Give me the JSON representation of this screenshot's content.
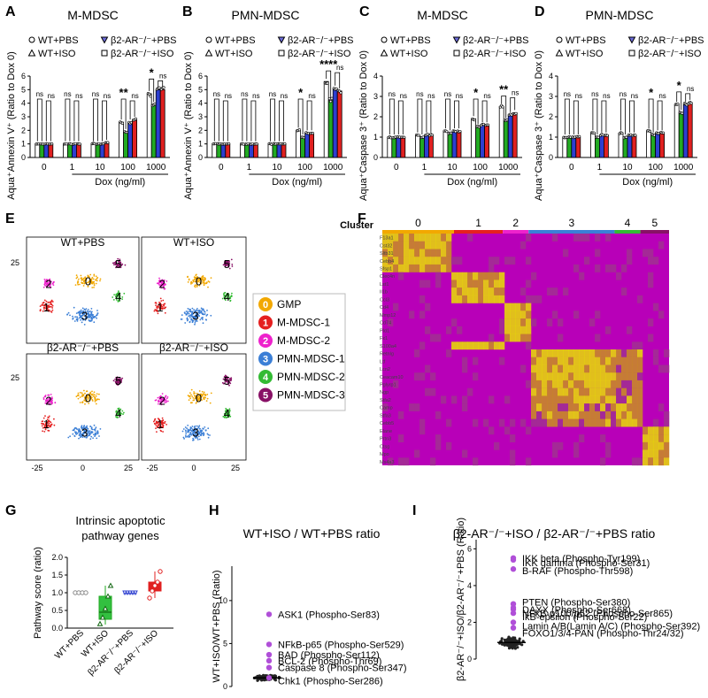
{
  "colors": {
    "wt_pbs": "#ffffff",
    "wt_iso": "#22aa22",
    "ko_pbs": "#2d3fd0",
    "ko_iso": "#e02020",
    "gmp": "#f2a800",
    "mm1": "#e52020",
    "mm2": "#ee22cc",
    "pmn1": "#3b7fd6",
    "pmn2": "#33bb33",
    "pmn3": "#881166",
    "lollipop": "#b04fd8"
  },
  "panel_letters": [
    "A",
    "B",
    "C",
    "D",
    "E",
    "F",
    "G",
    "H",
    "I"
  ],
  "legend_abcd": {
    "wt_pbs": "WT+PBS",
    "ko_pbs": "β2-AR⁻/⁻+PBS",
    "wt_iso": "WT+ISO",
    "ko_iso": "β2-AR⁻/⁻+ISO"
  },
  "ns": "ns",
  "tsne": {
    "panels": [
      "WT+PBS",
      "WT+ISO",
      "β2-AR⁻/⁻+PBS",
      "β2-AR⁻/⁻+ISO"
    ],
    "ticks": [
      "-25",
      "0",
      "25"
    ],
    "ytick": "25",
    "legend": [
      {
        "num": "0",
        "label": "GMP"
      },
      {
        "num": "1",
        "label": "M-MDSC-1"
      },
      {
        "num": "2",
        "label": "M-MDSC-2"
      },
      {
        "num": "3",
        "label": "PMN-MDSC-1"
      },
      {
        "num": "4",
        "label": "PMN-MDSC-2"
      },
      {
        "num": "5",
        "label": "PMN-MDSC-3"
      }
    ]
  },
  "heatmap": {
    "cluster_label": "Cluster",
    "clusters": [
      "0",
      "1",
      "2",
      "3",
      "4",
      "5"
    ],
    "genes": [
      "F13a1",
      "Cst32",
      "Sltb31",
      "Cebb4",
      "Sfsp1",
      "Clec4n",
      "Lst1",
      "Il1b",
      "Ccl3",
      "Cd4",
      "Mmp12",
      "Cd74",
      "Pld1",
      "Fx1",
      "S100a4",
      "Retnlg",
      "Ltf",
      "Lcn2",
      "Ceacam10",
      "Pglyrp1",
      "Ngp",
      "Stfa2",
      "Camp",
      "Stfa3",
      "Cebb5",
      "Elane",
      "Prtn3",
      "Ctsg",
      "Mpo",
      "Ms4a3"
    ]
  },
  "chart_data": [
    {
      "panel": "A",
      "type": "bar",
      "title": "M-MDSC",
      "ylabel": "Aqua⁺Annexin V⁺ (Ratio to Dox 0)",
      "xlabel": "Dox (ng/ml)",
      "categories": [
        "0",
        "1",
        "10",
        "100",
        "1000"
      ],
      "ylim": [
        0,
        6
      ],
      "yticks": [
        "0",
        "1",
        "2",
        "3",
        "4",
        "5",
        "6"
      ],
      "series": [
        {
          "name": "WT+PBS",
          "values": [
            1.0,
            1.0,
            1.0,
            2.6,
            4.7
          ]
        },
        {
          "name": "WT+ISO",
          "values": [
            1.0,
            1.0,
            1.0,
            1.9,
            3.9
          ]
        },
        {
          "name": "β2-AR⁻/⁻+PBS",
          "values": [
            1.0,
            1.0,
            1.0,
            2.6,
            5.0
          ]
        },
        {
          "name": "β2-AR⁻/⁻+ISO",
          "values": [
            1.0,
            1.0,
            1.1,
            2.8,
            5.0
          ]
        }
      ],
      "sig": [
        "ns",
        "ns",
        "ns",
        "**",
        "*"
      ],
      "sig2": [
        "ns",
        "ns",
        "ns",
        "ns",
        "ns"
      ]
    },
    {
      "panel": "B",
      "type": "bar",
      "title": "PMN-MDSC",
      "ylabel": "Aqua⁺Annexin V⁺ (Ratio to Dox 0)",
      "xlabel": "Dox (ng/ml)",
      "categories": [
        "0",
        "1",
        "10",
        "100",
        "1000"
      ],
      "ylim": [
        0,
        6
      ],
      "yticks": [
        "0",
        "1",
        "2",
        "3",
        "4",
        "5",
        "6"
      ],
      "series": [
        {
          "name": "WT+PBS",
          "values": [
            1.0,
            1.0,
            1.0,
            2.0,
            5.6
          ]
        },
        {
          "name": "WT+ISO",
          "values": [
            1.0,
            1.0,
            1.0,
            1.5,
            4.2
          ]
        },
        {
          "name": "β2-AR⁻/⁻+PBS",
          "values": [
            1.0,
            1.0,
            1.0,
            1.8,
            5.1
          ]
        },
        {
          "name": "β2-AR⁻/⁻+ISO",
          "values": [
            1.0,
            1.0,
            1.0,
            1.8,
            4.9
          ]
        }
      ],
      "sig": [
        "ns",
        "ns",
        "ns",
        "*",
        "****"
      ],
      "sig2": [
        "ns",
        "ns",
        "ns",
        "ns",
        "ns"
      ]
    },
    {
      "panel": "C",
      "type": "bar",
      "title": "M-MDSC",
      "ylabel": "Aqua⁺Caspase 3⁺ (Ratio to Dox 0)",
      "xlabel": "Dox (ng/ml)",
      "categories": [
        "0",
        "1",
        "10",
        "100",
        "1000"
      ],
      "ylim": [
        0,
        4
      ],
      "yticks": [
        "0",
        "1",
        "2",
        "3",
        "4"
      ],
      "series": [
        {
          "name": "WT+PBS",
          "values": [
            1.0,
            1.1,
            1.3,
            1.9,
            2.5
          ]
        },
        {
          "name": "WT+ISO",
          "values": [
            1.0,
            1.0,
            1.2,
            1.5,
            1.8
          ]
        },
        {
          "name": "β2-AR⁻/⁻+PBS",
          "values": [
            1.0,
            1.1,
            1.3,
            1.6,
            2.1
          ]
        },
        {
          "name": "β2-AR⁻/⁻+ISO",
          "values": [
            1.0,
            1.1,
            1.3,
            1.6,
            2.2
          ]
        }
      ],
      "sig": [
        "ns",
        "ns",
        "ns",
        "*",
        "**"
      ],
      "sig2": [
        "ns",
        "ns",
        "ns",
        "ns",
        "ns"
      ]
    },
    {
      "panel": "D",
      "type": "bar",
      "title": "PMN-MDSC",
      "ylabel": "Aqua⁺Caspase 3⁺ (Ratio to Dox 0)",
      "xlabel": "Dox (ng/ml)",
      "categories": [
        "0",
        "1",
        "10",
        "100",
        "1000"
      ],
      "ylim": [
        0,
        4
      ],
      "yticks": [
        "0",
        "1",
        "2",
        "3",
        "4"
      ],
      "series": [
        {
          "name": "WT+PBS",
          "values": [
            1.0,
            1.2,
            1.2,
            1.3,
            2.6
          ]
        },
        {
          "name": "WT+ISO",
          "values": [
            1.0,
            1.0,
            1.0,
            1.1,
            2.2
          ]
        },
        {
          "name": "β2-AR⁻/⁻+PBS",
          "values": [
            1.0,
            1.1,
            1.1,
            1.2,
            2.6
          ]
        },
        {
          "name": "β2-AR⁻/⁻+ISO",
          "values": [
            1.0,
            1.1,
            1.1,
            1.2,
            2.7
          ]
        }
      ],
      "sig": [
        "ns",
        "ns",
        "ns",
        "*",
        "*"
      ],
      "sig2": [
        "ns",
        "ns",
        "ns",
        "ns",
        "ns"
      ]
    },
    {
      "panel": "G",
      "type": "box",
      "title": "Intrinsic apoptotic pathway genes",
      "ylabel": "Pathway score (ratio)",
      "ylim": [
        0,
        2
      ],
      "yticks": [
        "0.0",
        "0.5",
        "1.0",
        "1.5",
        "2.0"
      ],
      "categories": [
        "WT+PBS",
        "WT+ISO",
        "β2-AR⁻/⁻+PBS",
        "β2-AR⁻/⁻+ISO"
      ],
      "boxes": [
        {
          "min": 1.0,
          "q1": 1.0,
          "median": 1.0,
          "q3": 1.0,
          "max": 1.0,
          "points": [
            1,
            1,
            1,
            1
          ]
        },
        {
          "min": 0.1,
          "q1": 0.25,
          "median": 0.45,
          "q3": 0.9,
          "max": 1.2,
          "points": [
            0.12,
            0.3,
            0.55,
            0.9,
            1.2
          ]
        },
        {
          "min": 1.0,
          "q1": 1.0,
          "median": 1.0,
          "q3": 1.0,
          "max": 1.0,
          "points": [
            1,
            1,
            1,
            1,
            1
          ]
        },
        {
          "min": 0.85,
          "q1": 1.05,
          "median": 1.15,
          "q3": 1.3,
          "max": 1.6,
          "points": [
            0.85,
            1.05,
            1.2,
            1.3,
            1.6
          ]
        }
      ]
    },
    {
      "panel": "H",
      "type": "scatter",
      "title": "WT+ISO / WT+PBS ratio",
      "ylabel": "WT+ISO/WT+PBS (Ratio)",
      "ylim": [
        0,
        14
      ],
      "yticks": [
        "0",
        "5",
        "10"
      ],
      "labels": [
        {
          "text": "ASK1 (Phospho-Ser83)",
          "value": 8.4
        },
        {
          "text": "NFkB-p65 (Phospho-Ser529)",
          "value": 4.9
        },
        {
          "text": "BAD (Phospho-Ser112)",
          "value": 3.7
        },
        {
          "text": "BCL-2 (Phospho-Thr69)",
          "value": 3.0
        },
        {
          "text": "Caspase 8 (Phospho-Ser347)",
          "value": 2.2
        },
        {
          "text": "Chk1 (Phospho-Ser286)",
          "value": 1.0
        }
      ]
    },
    {
      "panel": "I",
      "type": "scatter",
      "title": "β2-AR⁻/⁻+ISO / β2-AR⁻/⁻+PBS ratio",
      "ylabel": "β2-AR⁻/⁻+ISO/β2-AR⁻/⁻+PBS (Ratio)",
      "ylim": [
        0,
        6.5
      ],
      "yticks": [
        "0",
        "2",
        "4",
        "6"
      ],
      "labels": [
        {
          "text": "IKK beta (Phospho-Tyr199)",
          "value": 5.5
        },
        {
          "text": "IKK gamma (Phospho-Ser31)",
          "value": 5.4
        },
        {
          "text": "B-RAF (Phospho-Thr598)",
          "value": 4.9
        },
        {
          "text": "PTEN (Phospho-Ser380)",
          "value": 3.0
        },
        {
          "text": "DAXX (Phospho-Ser668)",
          "value": 2.8
        },
        {
          "text": "NFkB-p100/p52 (Phospho-Ser865)",
          "value": 2.7
        },
        {
          "text": "IkB-epsilon (Phospho-Ser22)",
          "value": 2.5
        },
        {
          "text": "Lamin A/B(Lamin A/C) (Phospho-Ser392)",
          "value": 2.0
        },
        {
          "text": "FOXO1/3/4-PAN (Phospho-Thr24/32)",
          "value": 1.7
        }
      ]
    }
  ]
}
